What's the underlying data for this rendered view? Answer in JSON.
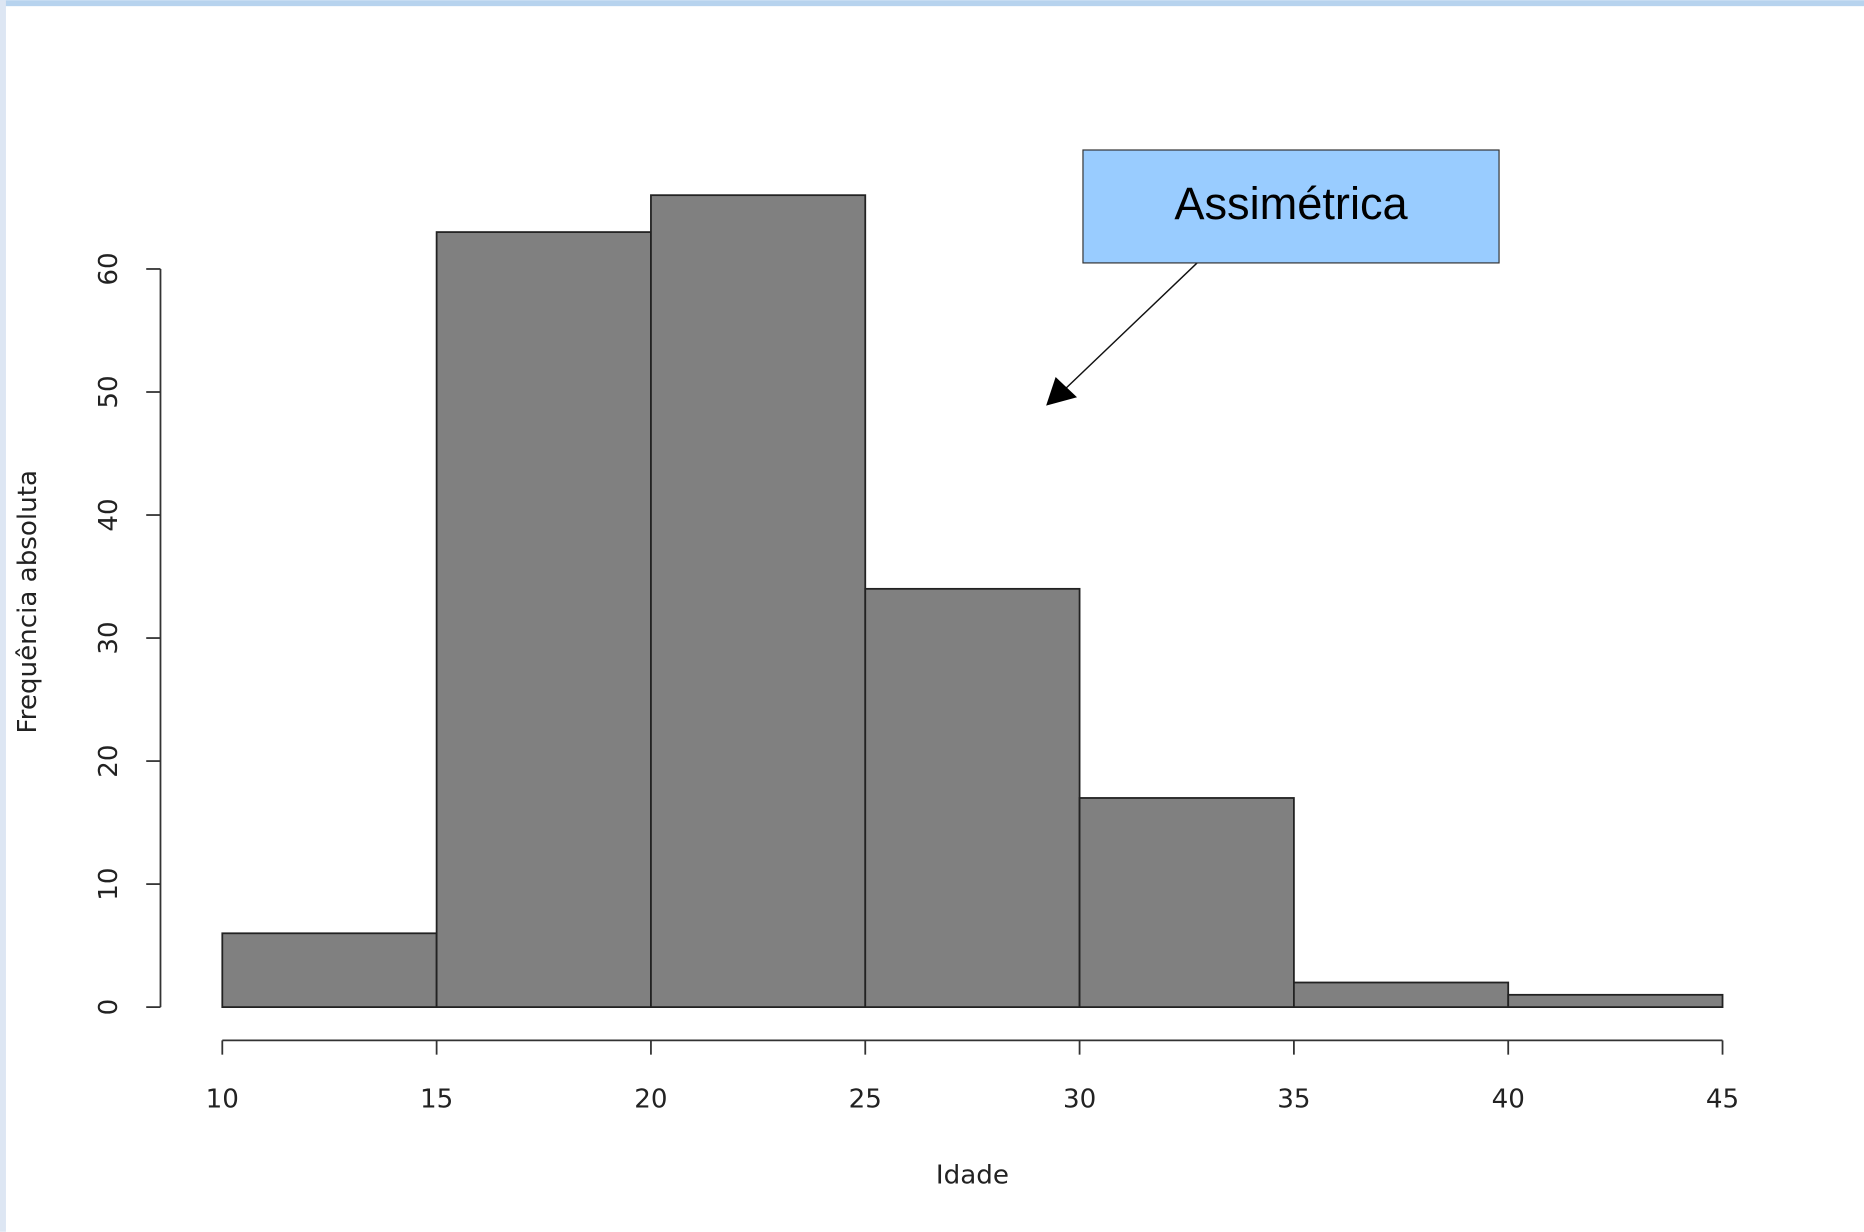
{
  "chart_data": {
    "type": "histogram",
    "bins": [
      10,
      15,
      20,
      25,
      30,
      35,
      40,
      45
    ],
    "values": [
      6,
      63,
      66,
      34,
      17,
      2,
      1
    ],
    "color": "#808080",
    "xlabel": "Idade",
    "ylabel": "Frequência absoluta",
    "xlim": [
      10,
      45
    ],
    "xticks": [
      10,
      15,
      20,
      25,
      30,
      35,
      40,
      45
    ],
    "ylim": [
      0,
      66
    ],
    "yticks": [
      0,
      10,
      20,
      30,
      40,
      50,
      60
    ],
    "annotation": "Assimétrica",
    "annotation_color": "#99ccff"
  }
}
